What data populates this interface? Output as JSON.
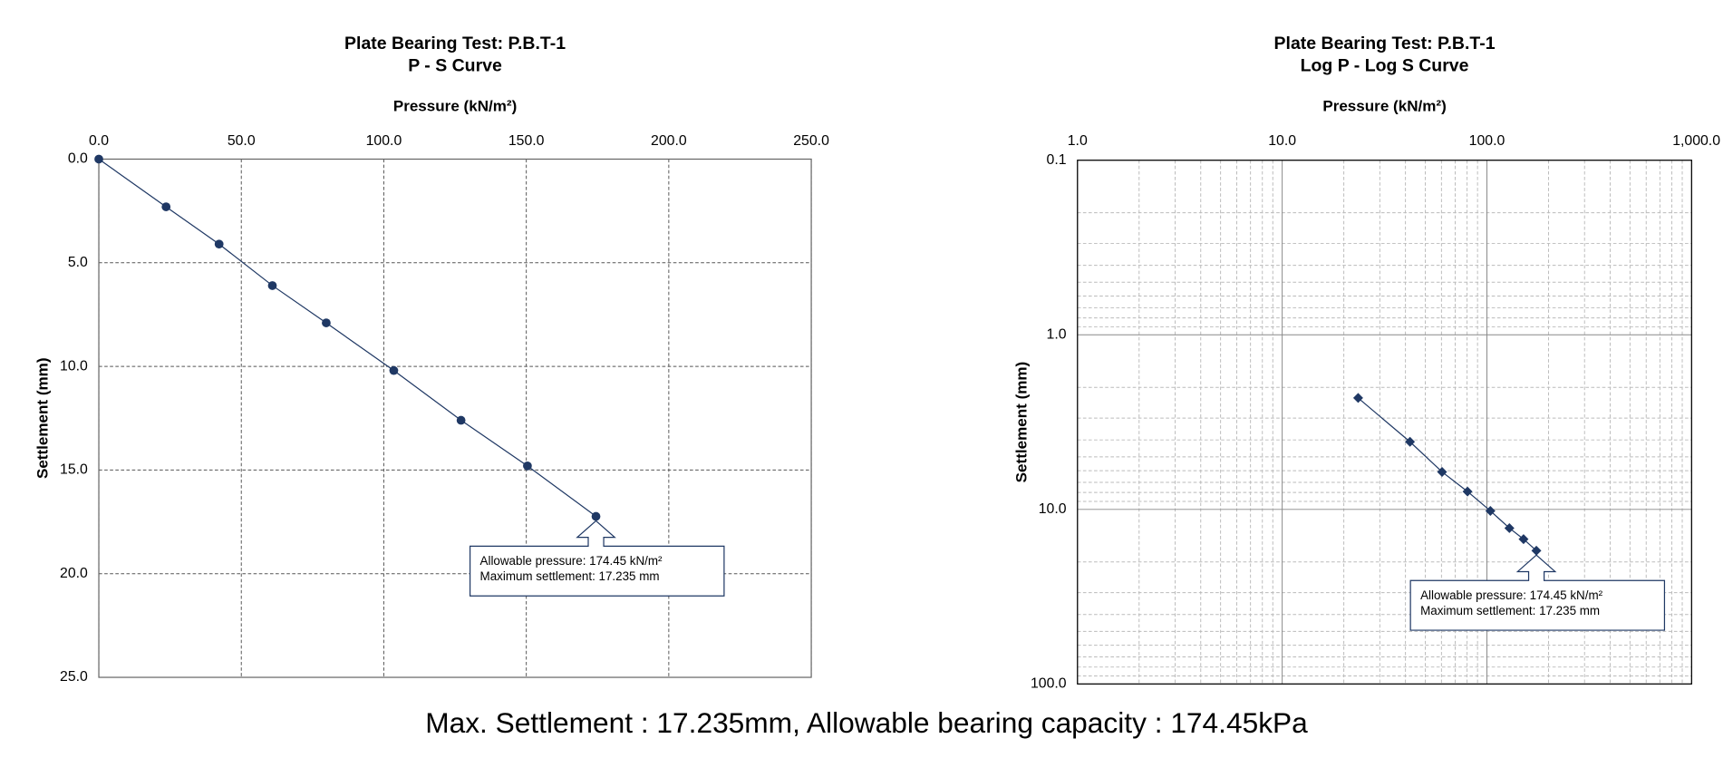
{
  "chart_data": [
    {
      "type": "line",
      "title": "Plate Bearing Test: P.B.T-1",
      "subtitle": "P - S Curve",
      "x_label": "Pressure (kN/m²)",
      "y_label": "Settlement (mm)",
      "x": [
        0,
        23.6,
        42.2,
        60.9,
        79.8,
        103.5,
        127.1,
        150.4,
        174.45
      ],
      "series": [
        {
          "color": "#1f3864",
          "marker": "circle",
          "values": [
            0,
            2.3,
            4.1,
            6.1,
            7.9,
            10.2,
            12.6,
            14.8,
            17.235
          ]
        }
      ],
      "xlim": [
        0,
        250
      ],
      "ylim": [
        0,
        25
      ],
      "y_inverted": true,
      "x_axis_position": "top",
      "xticks": [
        {
          "value": 0,
          "label": "0.0"
        },
        {
          "value": 50,
          "label": "50.0"
        },
        {
          "value": 100,
          "label": "100.0"
        },
        {
          "value": 150,
          "label": "150.0"
        },
        {
          "value": 200,
          "label": "200.0"
        },
        {
          "value": 250,
          "label": "250.0"
        }
      ],
      "yticks": [
        {
          "value": 0,
          "label": "0.0"
        },
        {
          "value": 5,
          "label": "5.0"
        },
        {
          "value": 10,
          "label": "10.0"
        },
        {
          "value": 15,
          "label": "15.0"
        },
        {
          "value": 20,
          "label": "20.0"
        },
        {
          "value": 25,
          "label": "25.0"
        }
      ],
      "grid": true,
      "log_x": false,
      "log_y": false,
      "annotation": [
        "Allowable pressure: 174.45 kN/m²",
        "Maximum settlement: 17.235 mm"
      ]
    },
    {
      "type": "line",
      "title": "Plate Bearing Test: P.B.T-1",
      "subtitle": "Log P - Log S Curve",
      "x_label": "Pressure (kN/m²)",
      "y_label": "Settlement (mm)",
      "x": [
        23.5,
        42.1,
        60.4,
        80.4,
        104,
        128.8,
        151,
        174.45
      ],
      "series": [
        {
          "color": "#1f3864",
          "marker": "diamond",
          "values": [
            2.3,
            4.1,
            6.1,
            7.9,
            10.2,
            12.8,
            14.8,
            17.235
          ]
        }
      ],
      "xlim": [
        1,
        1000
      ],
      "ylim": [
        0.1,
        100
      ],
      "y_inverted": true,
      "x_axis_position": "top",
      "xticks": [
        {
          "value": 1,
          "label": "1.0"
        },
        {
          "value": 10,
          "label": "10.0"
        },
        {
          "value": 100,
          "label": "100.0"
        },
        {
          "value": 1000,
          "label": "1,000.0"
        }
      ],
      "yticks": [
        {
          "value": 0.1,
          "label": "0.1"
        },
        {
          "value": 1,
          "label": "1.0"
        },
        {
          "value": 10,
          "label": "10.0"
        },
        {
          "value": 100,
          "label": "100.0"
        }
      ],
      "grid": true,
      "minor_grid": true,
      "log_x": true,
      "log_y": true,
      "annotation": [
        "Allowable pressure: 174.45 kN/m²",
        "Maximum settlement: 17.235 mm"
      ]
    }
  ],
  "caption": "Max. Settlement : 17.235mm, Allowable bearing capacity : 174.45kPa"
}
